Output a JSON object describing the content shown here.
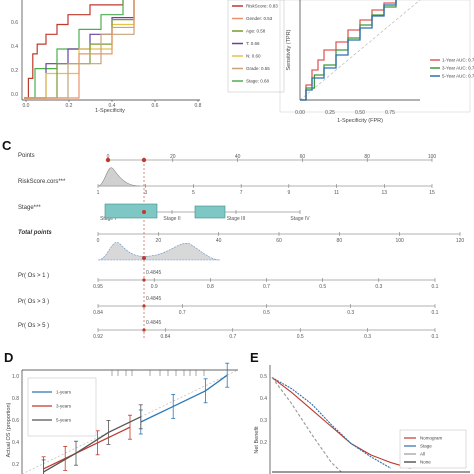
{
  "panels": {
    "c": "C",
    "d": "D",
    "e": "E"
  },
  "panel_a": {
    "xlabel": "1-Specificity",
    "x_ticks": [
      "0.0",
      "0.2",
      "0.4",
      "0.6",
      "0.8"
    ],
    "y_ticks": [
      "0.0",
      "0.2",
      "0.4",
      "0.6",
      "0.8"
    ],
    "legend": [
      {
        "label": "RiskScore: 0.83",
        "color": "#c0392b"
      },
      {
        "label": "Gender: 0.53",
        "color": "#e8956b"
      },
      {
        "label": "Age: 0.58",
        "color": "#7a9a2e"
      },
      {
        "label": "T: 0.66",
        "color": "#6b3fa0"
      },
      {
        "label": "N: 0.60",
        "color": "#e3c34a"
      },
      {
        "label": "Grade: 0.55",
        "color": "#c8a27a"
      },
      {
        "label": "Stage: 0.68",
        "color": "#4caf50"
      }
    ]
  },
  "panel_b": {
    "xlabel": "1-Specificity (FPR)",
    "ylabel": "Sensitivity (TPR)",
    "x_ticks": [
      "0.00",
      "0.25",
      "0.50",
      "0.75"
    ],
    "legend": [
      {
        "label": "1-Year AUC: 0.75",
        "color": "#e05a5a"
      },
      {
        "label": "3-Year AUC: 0.74",
        "color": "#3a9b3a"
      },
      {
        "label": "5-Year AUC: 0.76",
        "color": "#2f6fb0"
      }
    ]
  },
  "nomogram": {
    "rows": [
      {
        "label": "Points",
        "ticks": [
          "0",
          "20",
          "40",
          "60",
          "80",
          "100"
        ]
      },
      {
        "label": "RiskScore.cors***",
        "ticks": [
          "1",
          "3",
          "5",
          "7",
          "9",
          "11",
          "13",
          "15"
        ]
      },
      {
        "label": "Stage***",
        "ticks": [
          "Stage I",
          "Stage II",
          "Stage III",
          "Stage IV"
        ]
      },
      {
        "label": "Total points",
        "ticks": [
          "0",
          "20",
          "40",
          "60",
          "80",
          "100",
          "120"
        ]
      },
      {
        "label": "Pr( Os > 1 )",
        "ticks": [
          "0.95",
          "0.9",
          "0.8",
          "0.7",
          "0.5",
          "0.3",
          "0.1"
        ]
      },
      {
        "label": "Pr( Os > 3 )",
        "ticks": [
          "0.84",
          "0.7",
          "0.5",
          "0.3",
          "0.1"
        ]
      },
      {
        "label": "Pr( Os > 5 )",
        "ticks": [
          "0.92",
          "0.84",
          "0.7",
          "0.5",
          "0.3",
          "0.1"
        ]
      }
    ],
    "callouts": [
      "0.4845",
      "0.4845",
      "0.4845"
    ]
  },
  "panel_d": {
    "ylabel": "Actual OS (proportion)",
    "y_ticks": [
      "1.0",
      "0.8",
      "0.6",
      "0.4",
      "0.2"
    ],
    "legend": [
      {
        "label": "1-years",
        "color": "#2a78b8"
      },
      {
        "label": "3-years",
        "color": "#c0392b"
      },
      {
        "label": "5-years",
        "color": "#555555"
      }
    ]
  },
  "panel_e": {
    "ylabel": "Net Benefit",
    "y_ticks": [
      "0.5",
      "0.4",
      "0.3",
      "0.2"
    ],
    "legend": [
      {
        "label": "Nomogram",
        "color": "#c0392b"
      },
      {
        "label": "Stage",
        "color": "#2f6fb0"
      },
      {
        "label": "All",
        "color": "#999999"
      },
      {
        "label": "None",
        "color": "#333333"
      }
    ]
  },
  "chart_data": [
    {
      "type": "line",
      "panel": "a",
      "xlabel": "1-Specificity",
      "xlim": [
        0,
        0.8
      ],
      "ylim": [
        0,
        1
      ],
      "series": [
        {
          "name": "RiskScore: 0.83",
          "x": [
            0,
            0.02,
            0.04,
            0.06,
            0.1,
            0.15,
            0.2,
            0.3,
            0.45
          ],
          "y": [
            0,
            0.2,
            0.45,
            0.55,
            0.65,
            0.75,
            0.85,
            0.95,
            1
          ]
        },
        {
          "name": "Stage: 0.68",
          "x": [
            0,
            0.05,
            0.15,
            0.25,
            0.35,
            0.45
          ],
          "y": [
            0,
            0.3,
            0.5,
            0.7,
            0.85,
            1
          ]
        },
        {
          "name": "T: 0.66",
          "x": [
            0,
            0.1,
            0.2,
            0.3,
            0.4,
            0.5
          ],
          "y": [
            0,
            0.35,
            0.5,
            0.65,
            0.82,
            1
          ]
        },
        {
          "name": "N: 0.60",
          "x": [
            0,
            0.1,
            0.25,
            0.4,
            0.5
          ],
          "y": [
            0,
            0.25,
            0.5,
            0.75,
            1
          ]
        },
        {
          "name": "Age: 0.58",
          "x": [
            0,
            0.15,
            0.3,
            0.4,
            0.5
          ],
          "y": [
            0,
            0.35,
            0.55,
            0.8,
            1
          ]
        },
        {
          "name": "Grade: 0.55",
          "x": [
            0,
            0.2,
            0.35,
            0.5
          ],
          "y": [
            0,
            0.35,
            0.65,
            1
          ]
        },
        {
          "name": "Gender: 0.53",
          "x": [
            0,
            0.25,
            0.4,
            0.5
          ],
          "y": [
            0,
            0.45,
            0.72,
            1
          ]
        }
      ]
    },
    {
      "type": "line",
      "panel": "b",
      "xlabel": "1-Specificity (FPR)",
      "ylabel": "Sensitivity (TPR)",
      "xlim": [
        0,
        1
      ],
      "ylim": [
        0,
        1
      ],
      "series": [
        {
          "name": "1-Year AUC: 0.75",
          "x": [
            0,
            0.05,
            0.1,
            0.15,
            0.2,
            0.3,
            0.4,
            0.5,
            0.6,
            0.7,
            0.8
          ],
          "y": [
            0,
            0.15,
            0.3,
            0.4,
            0.5,
            0.58,
            0.7,
            0.8,
            0.9,
            0.97,
            1
          ]
        },
        {
          "name": "3-Year AUC: 0.74",
          "x": [
            0,
            0.05,
            0.12,
            0.2,
            0.3,
            0.4,
            0.5,
            0.6,
            0.7,
            0.8
          ],
          "y": [
            0,
            0.12,
            0.25,
            0.35,
            0.5,
            0.62,
            0.75,
            0.85,
            0.93,
            1
          ]
        },
        {
          "name": "5-Year AUC: 0.76",
          "x": [
            0,
            0.05,
            0.1,
            0.2,
            0.3,
            0.4,
            0.5,
            0.6,
            0.7,
            0.8
          ],
          "y": [
            0,
            0.1,
            0.22,
            0.32,
            0.45,
            0.6,
            0.72,
            0.84,
            0.95,
            1
          ]
        }
      ]
    },
    {
      "type": "line",
      "panel": "d",
      "ylabel": "Actual OS (proportion)",
      "xlim": [
        0,
        1
      ],
      "ylim": [
        0,
        1
      ],
      "series": [
        {
          "name": "1-years",
          "x": [
            0.55,
            0.7,
            0.85,
            0.95
          ],
          "y": [
            0.5,
            0.65,
            0.8,
            0.95
          ]
        },
        {
          "name": "3-years",
          "x": [
            0.1,
            0.2,
            0.35,
            0.5
          ],
          "y": [
            0.05,
            0.15,
            0.3,
            0.45
          ]
        },
        {
          "name": "5-years",
          "x": [
            0.1,
            0.25,
            0.4,
            0.55
          ],
          "y": [
            0.02,
            0.2,
            0.4,
            0.55
          ]
        }
      ]
    },
    {
      "type": "line",
      "panel": "e",
      "ylabel": "Net Benefit",
      "xlim": [
        0,
        1
      ],
      "ylim": [
        0,
        0.55
      ],
      "series": [
        {
          "name": "Nomogram",
          "x": [
            0,
            0.1,
            0.2,
            0.3,
            0.4,
            0.5,
            0.6,
            0.7
          ],
          "y": [
            0.5,
            0.42,
            0.33,
            0.24,
            0.15,
            0.09,
            0.05,
            0.02
          ]
        },
        {
          "name": "Stage",
          "x": [
            0,
            0.1,
            0.2,
            0.3,
            0.4,
            0.5,
            0.6
          ],
          "y": [
            0.5,
            0.44,
            0.36,
            0.25,
            0.15,
            0.08,
            0.02
          ]
        },
        {
          "name": "All",
          "x": [
            0,
            0.1,
            0.2,
            0.3,
            0.35
          ],
          "y": [
            0.5,
            0.36,
            0.2,
            0.05,
            0
          ]
        },
        {
          "name": "None",
          "x": [
            0,
            1
          ],
          "y": [
            0,
            0
          ]
        }
      ]
    }
  ]
}
